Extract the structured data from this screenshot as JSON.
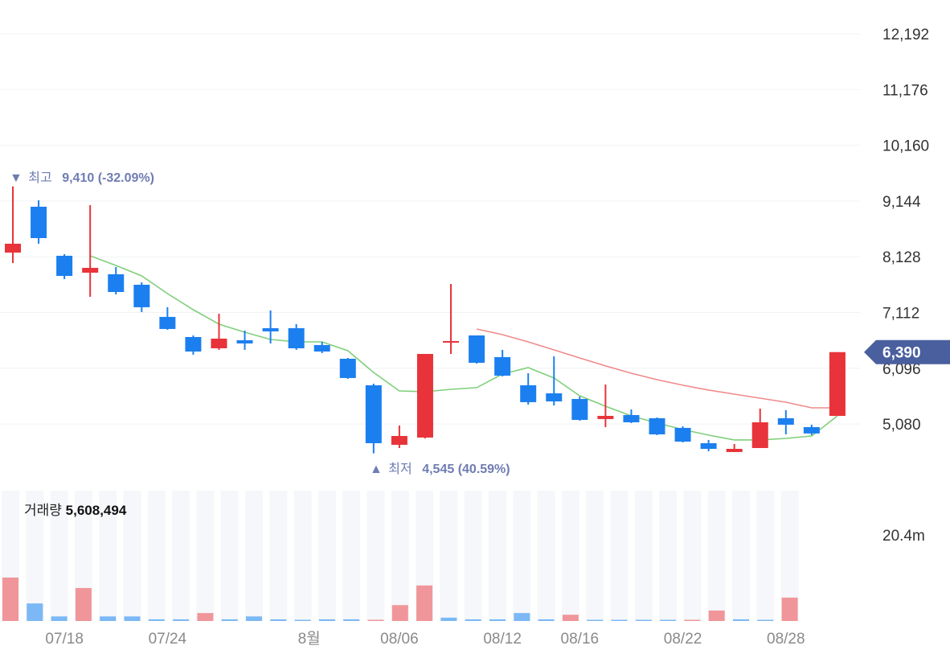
{
  "chart_data": {
    "type": "candlestick",
    "y_axis": {
      "ticks": [
        12192,
        11176,
        10160,
        9144,
        8128,
        7112,
        6096,
        5080
      ],
      "tick_labels": [
        "12,192",
        "11,176",
        "10,160",
        "9,144",
        "8,128",
        "7,112",
        "6,096",
        "5,080"
      ],
      "range": [
        4300,
        12192
      ],
      "grid": true,
      "position": "right"
    },
    "x_labels": [
      {
        "label": "07/18",
        "index": 2
      },
      {
        "label": "07/24",
        "index": 6
      },
      {
        "label": "8월",
        "index": 11.5
      },
      {
        "label": "08/06",
        "index": 15
      },
      {
        "label": "08/12",
        "index": 19
      },
      {
        "label": "08/16",
        "index": 22
      },
      {
        "label": "08/22",
        "index": 26
      },
      {
        "label": "08/28",
        "index": 30
      }
    ],
    "candles": [
      {
        "o": 8204,
        "h": 9410,
        "l": 8014,
        "c": 8366
      },
      {
        "o": 9040,
        "h": 9157,
        "l": 8366,
        "c": 8468
      },
      {
        "o": 8146,
        "h": 8175,
        "l": 7721,
        "c": 7779
      },
      {
        "o": 7838,
        "h": 9070,
        "l": 7398,
        "c": 7926
      },
      {
        "o": 7809,
        "h": 7941,
        "l": 7442,
        "c": 7486
      },
      {
        "o": 7618,
        "h": 7662,
        "l": 7120,
        "c": 7208
      },
      {
        "o": 7032,
        "h": 7208,
        "l": 6797,
        "c": 6812
      },
      {
        "o": 6665,
        "h": 6694,
        "l": 6343,
        "c": 6401
      },
      {
        "o": 6460,
        "h": 7090,
        "l": 6431,
        "c": 6636
      },
      {
        "o": 6607,
        "h": 6782,
        "l": 6431,
        "c": 6548
      },
      {
        "o": 6826,
        "h": 7149,
        "l": 6548,
        "c": 6768
      },
      {
        "o": 6826,
        "h": 6900,
        "l": 6431,
        "c": 6460
      },
      {
        "o": 6519,
        "h": 6577,
        "l": 6372,
        "c": 6401
      },
      {
        "o": 6269,
        "h": 6284,
        "l": 5903,
        "c": 5918
      },
      {
        "o": 5786,
        "h": 5815,
        "l": 4545,
        "c": 4730
      },
      {
        "o": 4701,
        "h": 5053,
        "l": 4642,
        "c": 4862
      },
      {
        "o": 4833,
        "h": 6357,
        "l": 4818,
        "c": 6357
      },
      {
        "o": 6577,
        "h": 7633,
        "l": 6357,
        "c": 6592
      },
      {
        "o": 6694,
        "h": 6694,
        "l": 6181,
        "c": 6196
      },
      {
        "o": 6299,
        "h": 6431,
        "l": 5947,
        "c": 5961
      },
      {
        "o": 5786,
        "h": 6005,
        "l": 5434,
        "c": 5478
      },
      {
        "o": 5639,
        "h": 6313,
        "l": 5419,
        "c": 5492
      },
      {
        "o": 5536,
        "h": 5580,
        "l": 5141,
        "c": 5155
      },
      {
        "o": 5170,
        "h": 5800,
        "l": 5023,
        "c": 5228
      },
      {
        "o": 5243,
        "h": 5346,
        "l": 5097,
        "c": 5111
      },
      {
        "o": 5185,
        "h": 5199,
        "l": 4877,
        "c": 4891
      },
      {
        "o": 5009,
        "h": 5038,
        "l": 4745,
        "c": 4759
      },
      {
        "o": 4730,
        "h": 4789,
        "l": 4583,
        "c": 4627
      },
      {
        "o": 4569,
        "h": 4715,
        "l": 4569,
        "c": 4627
      },
      {
        "o": 4642,
        "h": 5360,
        "l": 4642,
        "c": 5111
      },
      {
        "o": 5185,
        "h": 5331,
        "l": 4891,
        "c": 5067
      },
      {
        "o": 5023,
        "h": 5067,
        "l": 4877,
        "c": 4907
      },
      {
        "o": 5228,
        "h": 6390,
        "l": 5228,
        "c": 6390
      }
    ],
    "moving_averages": [
      {
        "name": "MA short",
        "color": "#7fcf7a",
        "start_index": 3,
        "values": [
          8146,
          7970,
          7779,
          7457,
          7164,
          6900,
          6753,
          6621,
          6577,
          6577,
          6416,
          6020,
          5683,
          5668,
          5712,
          5742,
          5991,
          6108,
          5918,
          5595,
          5404,
          5228,
          5097,
          4979,
          4877,
          4789,
          4789,
          4818,
          4862,
          5228
        ]
      },
      {
        "name": "MA long",
        "color": "#f08a8a",
        "start_index": 18,
        "values": [
          6812,
          6709,
          6577,
          6431,
          6284,
          6138,
          6005,
          5888,
          5786,
          5698,
          5624,
          5551,
          5478,
          5375,
          5375
        ]
      }
    ],
    "high_annotation": {
      "marker": "▼",
      "label": "최고",
      "value": "9,410 (-32.09%)",
      "index": 0
    },
    "low_annotation": {
      "marker": "▲",
      "label": "최저",
      "value": "4,545 (40.59%)",
      "index": 14
    },
    "current_price": {
      "value": 6390,
      "label": "6,390"
    },
    "volume": {
      "label": "거래량",
      "current": "5,608,494",
      "axis_label": "20.4m",
      "axis_value_m": 20.4,
      "values_m": [
        10.4,
        4.2,
        1.1,
        7.9,
        1.1,
        1.1,
        0.4,
        0.4,
        1.9,
        0.4,
        1.1,
        0.4,
        0.2,
        0.4,
        0.4,
        0.2,
        3.8,
        8.5,
        0.8,
        0.4,
        0.4,
        1.9,
        0.4,
        1.5,
        0.2,
        0.2,
        0.2,
        0.2,
        0.2,
        2.5,
        0.4,
        0.2,
        5.6
      ]
    },
    "colors": {
      "up": "#e8333a",
      "down": "#1c7ff0",
      "up_volume": "#f0969a",
      "down_volume": "#7bb8f5",
      "annotation": "#6f7cb3",
      "price_tag": "#4a5f9e"
    }
  }
}
